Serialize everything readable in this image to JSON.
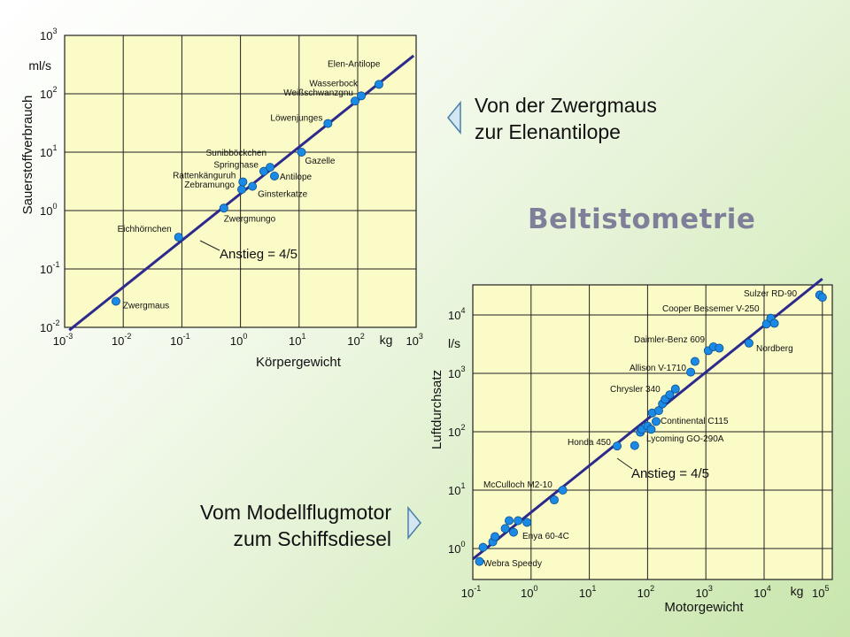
{
  "title": "Beltistometrie",
  "captions": {
    "top": [
      "Von der Zwergmaus",
      "zur Elenantilope"
    ],
    "bottom": [
      "Vom Modellflugmotor",
      "zum Schiffsdiesel"
    ]
  },
  "colors": {
    "plot_bg": "#fbfbc8",
    "grid": "#222222",
    "line": "#2c2a8c",
    "point": "#1a8ae6",
    "arrow_fill": "#d4e6f2",
    "title": "#7f7f9a"
  },
  "chart_data": [
    {
      "type": "scatter",
      "log_scale": true,
      "grid": true,
      "xlabel": "Körpergewicht",
      "ylabel": "Sauerstoffverbrauch",
      "x_unit": "kg",
      "y_unit": "ml/s",
      "xlim": [
        0.001,
        1000
      ],
      "ylim": [
        0.01,
        1000
      ],
      "x_ticks": [
        {
          "base": "10",
          "exp": "-3"
        },
        {
          "base": "10",
          "exp": "-2"
        },
        {
          "base": "10",
          "exp": "-1"
        },
        {
          "base": "10",
          "exp": "0"
        },
        {
          "base": "10",
          "exp": "1"
        },
        {
          "base": "10",
          "exp": "2"
        },
        {
          "base": "10",
          "exp": "3"
        }
      ],
      "y_ticks": [
        {
          "base": "10",
          "exp": "-2"
        },
        {
          "base": "10",
          "exp": "-1"
        },
        {
          "base": "10",
          "exp": "0"
        },
        {
          "base": "10",
          "exp": "1"
        },
        {
          "base": "10",
          "exp": "2"
        },
        {
          "base": "10",
          "exp": "3"
        }
      ],
      "annotation": "Anstieg = 4/5",
      "fit_line": {
        "slope": 0.8,
        "x_range": [
          0.0012,
          900
        ]
      },
      "points": [
        {
          "label": "Zwergmaus",
          "x": 0.0075,
          "y": 0.028
        },
        {
          "label": "Eichhörnchen",
          "x": 0.088,
          "y": 0.35
        },
        {
          "label": "Zwergmungo",
          "x": 0.52,
          "y": 1.1
        },
        {
          "label": "Zebramungo",
          "x": 1.05,
          "y": 2.3
        },
        {
          "label": "Rattenkänguruh",
          "x": 1.1,
          "y": 3.1
        },
        {
          "label": "Ginsterkatze",
          "x": 1.6,
          "y": 2.6
        },
        {
          "label": "Springhase",
          "x": 2.5,
          "y": 4.7
        },
        {
          "label": "Sunibböckchen",
          "x": 3.2,
          "y": 5.5
        },
        {
          "label": "Antilope",
          "x": 3.8,
          "y": 3.9
        },
        {
          "label": "Gazelle",
          "x": 11,
          "y": 10
        },
        {
          "label": "Löwenjunges",
          "x": 31,
          "y": 31
        },
        {
          "label": "Weißschwanzgnu",
          "x": 90,
          "y": 75
        },
        {
          "label": "Wasserbock",
          "x": 115,
          "y": 92
        },
        {
          "label": "Elen-Antilope",
          "x": 230,
          "y": 145
        }
      ],
      "point_labels": [
        {
          "text": "Zwergmaus"
        },
        {
          "text": "Eichhörnchen"
        },
        {
          "text": "Zwergmungo"
        },
        {
          "text": "Zebramungo"
        },
        {
          "text": "Rattenkänguruh"
        },
        {
          "text": "Ginsterkatze"
        },
        {
          "text": "Springhase"
        },
        {
          "text": "Sunibböckchen"
        },
        {
          "text": "Antilope"
        },
        {
          "text": "Gazelle"
        },
        {
          "text": "Löwenjunges"
        },
        {
          "text": "Weißschwanzgnu"
        },
        {
          "text": "Wasserbock"
        },
        {
          "text": "Elen-Antilope"
        }
      ]
    },
    {
      "type": "scatter",
      "log_scale": true,
      "grid": true,
      "xlabel": "Motorgewicht",
      "ylabel": "Luftdurchsatz",
      "x_unit": "kg",
      "y_unit": "l/s",
      "xlim": [
        0.1,
        100000
      ],
      "ylim": [
        0.5,
        100000
      ],
      "x_ticks": [
        {
          "base": "10",
          "exp": "-1"
        },
        {
          "base": "10",
          "exp": "0"
        },
        {
          "base": "10",
          "exp": "1"
        },
        {
          "base": "10",
          "exp": "2"
        },
        {
          "base": "10",
          "exp": "3"
        },
        {
          "base": "10",
          "exp": "4"
        },
        {
          "base": "10",
          "exp": "5"
        }
      ],
      "y_ticks": [
        {
          "base": "10",
          "exp": "0"
        },
        {
          "base": "10",
          "exp": "1"
        },
        {
          "base": "10",
          "exp": "2"
        },
        {
          "base": "10",
          "exp": "3"
        },
        {
          "base": "10",
          "exp": "4"
        }
      ],
      "annotation": "Anstieg = 4/5",
      "fit_line": {
        "slope": 0.8,
        "x_range": [
          0.1,
          100000
        ]
      },
      "points": [
        {
          "x": 0.13,
          "y": 0.6
        },
        {
          "x": 0.15,
          "y": 1.05
        },
        {
          "x": 0.22,
          "y": 1.3
        },
        {
          "x": 0.24,
          "y": 1.6
        },
        {
          "x": 0.36,
          "y": 2.2
        },
        {
          "x": 0.42,
          "y": 3.0
        },
        {
          "x": 0.5,
          "y": 1.9
        },
        {
          "x": 0.6,
          "y": 3.0
        },
        {
          "x": 0.85,
          "y": 2.8
        },
        {
          "x": 2.5,
          "y": 6.8
        },
        {
          "x": 3.5,
          "y": 10
        },
        {
          "x": 30,
          "y": 57
        },
        {
          "x": 60,
          "y": 58
        },
        {
          "x": 75,
          "y": 98
        },
        {
          "x": 80,
          "y": 110
        },
        {
          "x": 100,
          "y": 125
        },
        {
          "x": 115,
          "y": 110
        },
        {
          "x": 120,
          "y": 210
        },
        {
          "x": 140,
          "y": 150
        },
        {
          "x": 155,
          "y": 230
        },
        {
          "x": 180,
          "y": 300
        },
        {
          "x": 200,
          "y": 360
        },
        {
          "x": 240,
          "y": 430
        },
        {
          "x": 300,
          "y": 540
        },
        {
          "x": 550,
          "y": 1050
        },
        {
          "x": 650,
          "y": 1600
        },
        {
          "x": 1100,
          "y": 2450
        },
        {
          "x": 1350,
          "y": 2850
        },
        {
          "x": 1700,
          "y": 2700
        },
        {
          "x": 5500,
          "y": 3300
        },
        {
          "x": 11000,
          "y": 7000
        },
        {
          "x": 13000,
          "y": 8800
        },
        {
          "x": 15000,
          "y": 7200
        },
        {
          "x": 90000,
          "y": 22000
        },
        {
          "x": 100000,
          "y": 20000
        }
      ],
      "point_labels": [
        {
          "text": "Webra Speedy"
        },
        {
          "text": "Enya 60-4C"
        },
        {
          "text": "McCulloch M2-10"
        },
        {
          "text": "Honda 450"
        },
        {
          "text": "Lycoming GO-290A"
        },
        {
          "text": "Continental C115"
        },
        {
          "text": "Chrysler 340"
        },
        {
          "text": "Allison V-1710"
        },
        {
          "text": "Daimler-Benz 609"
        },
        {
          "text": "Nordberg"
        },
        {
          "text": "Cooper Bessemer V-250"
        },
        {
          "text": "Sulzer RD-90"
        }
      ]
    }
  ]
}
